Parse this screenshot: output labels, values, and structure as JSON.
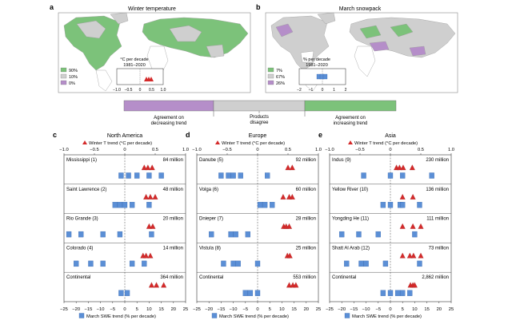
{
  "maps": {
    "a": {
      "letter": "a",
      "title": "Winter temperature",
      "legend": [
        "90%",
        "10%",
        "0%"
      ],
      "inset_title_1": "°C per decade",
      "inset_title_2": "1981–2020",
      "inset_ticks": [
        "−1.0",
        "−0.5",
        "0",
        "0.5",
        "1.0"
      ]
    },
    "b": {
      "letter": "b",
      "title": "March snowpack",
      "legend": [
        "7%",
        "67%",
        "26%"
      ],
      "inset_title_1": "% per decade",
      "inset_title_2": "1981–2020",
      "inset_ticks": [
        "−2",
        "−1",
        "0",
        "1",
        "2"
      ]
    }
  },
  "agreement_bar": {
    "labels": [
      "Agreement on decreasing trend",
      "Products disagree",
      "Agreement on increasing trend"
    ],
    "colors": [
      "#b58ec9",
      "#cfcfcf",
      "#7cc27a"
    ]
  },
  "colors": {
    "green": "#7cc27a",
    "gray": "#cfcfcf",
    "purple": "#b58ec9",
    "land_none": "#ffffff",
    "temp_marker": "#d42a2a",
    "swe_marker": "#5b8fd6"
  },
  "panel_axes": {
    "temp_axis_label": "Winter T trend (°C per decade)",
    "swe_axis_label": "March SWE trend (% per decade)",
    "temp_ticks": [
      "−1.0",
      "−0.5",
      "0",
      "0.5",
      "1.0"
    ],
    "swe_ticks": [
      "−25",
      "−20",
      "−15",
      "−10",
      "−5",
      "0",
      "5",
      "10",
      "15",
      "20",
      "25"
    ]
  },
  "chart_data": [
    {
      "letter": "c",
      "title": "North America",
      "type": "scatter",
      "temp_xlim": [
        -1.0,
        1.0
      ],
      "swe_xlim": [
        -25,
        25
      ],
      "rows": [
        {
          "label": "Mississippi (1)",
          "pop": "84 million",
          "temp": [
            0.32,
            0.38,
            0.45
          ],
          "swe": [
            -1.5,
            1.5,
            5,
            10,
            15
          ]
        },
        {
          "label": "Saint Lawrence (2)",
          "pop": "48 million",
          "temp": [
            0.35,
            0.42,
            0.5
          ],
          "swe": [
            -4,
            -2,
            0,
            3,
            10
          ]
        },
        {
          "label": "Rio Grande (3)",
          "pop": "20 million",
          "temp": [
            0.4,
            0.46
          ],
          "swe": [
            -23,
            -18,
            -9,
            -2,
            11
          ]
        },
        {
          "label": "Colorado (4)",
          "pop": "14 million",
          "temp": [
            0.3,
            0.35,
            0.42
          ],
          "swe": [
            -20,
            -14,
            -9,
            3,
            8
          ]
        },
        {
          "label": "Continental",
          "pop": "364 million",
          "temp": [
            0.44,
            0.52,
            0.64
          ],
          "swe": [
            -1.5,
            1
          ]
        }
      ]
    },
    {
      "letter": "d",
      "title": "Europe",
      "type": "scatter",
      "temp_xlim": [
        -1.0,
        1.0
      ],
      "swe_xlim": [
        -25,
        25
      ],
      "rows": [
        {
          "label": "Danube (5)",
          "pop": "92 million",
          "temp": [
            0.5,
            0.57
          ],
          "swe": [
            -15,
            -12,
            -10,
            -7,
            4
          ]
        },
        {
          "label": "Volga (6)",
          "pop": "60 million",
          "temp": [
            0.42,
            0.52,
            0.57
          ],
          "swe": [
            1,
            3,
            6
          ]
        },
        {
          "label": "Dnieper (7)",
          "pop": "28 million",
          "temp": [
            0.43,
            0.47,
            0.52
          ],
          "swe": [
            -19,
            -11,
            -9,
            -4
          ]
        },
        {
          "label": "Vistula (8)",
          "pop": "25 million",
          "temp": [
            0.49,
            0.53
          ],
          "swe": [
            -14,
            -10,
            -8,
            0
          ]
        },
        {
          "label": "Continental",
          "pop": "553 million",
          "temp": [
            0.52,
            0.58,
            0.63
          ],
          "swe": [
            -5,
            -3,
            0
          ]
        }
      ]
    },
    {
      "letter": "e",
      "title": "Asia",
      "type": "scatter",
      "temp_xlim": [
        -1.0,
        1.0
      ],
      "swe_xlim": [
        -25,
        25
      ],
      "rows": [
        {
          "label": "Indus (9)",
          "pop": "230 million",
          "temp": [
            0.1,
            0.15,
            0.21,
            0.36
          ],
          "swe": [
            -11,
            0,
            5,
            17
          ]
        },
        {
          "label": "Yellow River (10)",
          "pop": "136 million",
          "temp": [
            0.2,
            0.37
          ],
          "swe": [
            -3,
            0,
            4,
            5,
            12
          ]
        },
        {
          "label": "Yongding He (11)",
          "pop": "111 million",
          "temp": [
            0.2,
            0.37,
            0.5
          ],
          "swe": [
            -20,
            -13,
            -5,
            10
          ]
        },
        {
          "label": "Shatt Al Arab (12)",
          "pop": "73 million",
          "temp": [
            0.2,
            0.32,
            0.38,
            0.5
          ],
          "swe": [
            -18,
            -12,
            -10,
            -2,
            12
          ]
        },
        {
          "label": "Continental",
          "pop": "2,862 million",
          "temp": [
            0.33,
            0.37,
            0.4
          ],
          "swe": [
            -3,
            0,
            3,
            5,
            8
          ]
        }
      ]
    }
  ]
}
